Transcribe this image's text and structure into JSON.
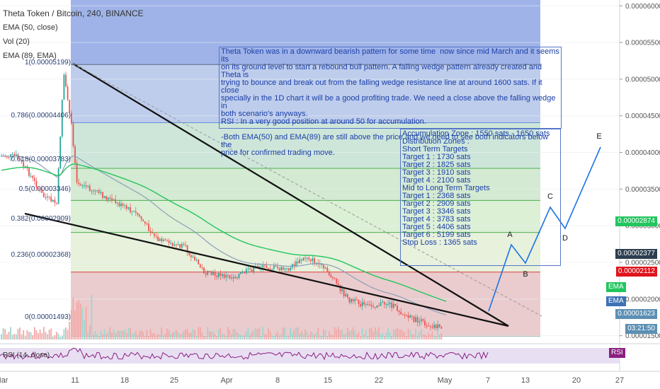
{
  "header": {
    "symbol": "Theta Token / Bitcoin, 240, BINANCE",
    "ema50": "EMA (50, close)",
    "vol": "Vol (20)",
    "ema89": "EMA (89, EMA)",
    "rsi": "RSI (14, close)"
  },
  "note_main": [
    "Theta Token was in a downward bearish pattern for some time  now since mid March and it seems its",
    "on its ground level to start a rebound bull pattern. A falling wedge pattern already created and Theta is",
    "trying to bounce and break out from the falling wedge resistance line at around 1600 sats. If it close",
    "specially in the 1D chart it will be a good profiting trade. We need a close above the falling wedge in",
    "both scenario's anyways.",
    "RSI : In a very good position at around 50 for accumulation.",
    "",
    "-Both EMA(50) and EMA(89) are still above the price and we need to see both indicators below the",
    "price for confirmed trading move."
  ],
  "note_targets": [
    "Accumulation Zone : 1550 sats - 1650 sats",
    "Distribution Zones :",
    "Short Term Targets",
    "Target 1 : 1730 sats",
    "Target 2 : 1825 sats",
    "Target 3 : 1910 sats",
    "Target 4 : 2100 sats",
    "Mid to Long Term Targets",
    "Target 1 : 2368 sats",
    "Target 2 : 2909 sats",
    "Target 3 : 3346 sats",
    "Target 4 : 3783 sats",
    "Target 5 : 4406 sats",
    "Target 6 : 5199 sats",
    "Stop Loss : 1365 sats"
  ],
  "price_labels": {
    "ema89_value": "0.00002874",
    "ema50_value": "0.00002377",
    "red_value": "0.00002112",
    "last_value": "0.00001623",
    "countdown": "03:21:50",
    "ema_tag1": "EMA",
    "ema_tag2": "EMA",
    "rsi_tag": "RSI"
  },
  "colors": {
    "blue_zone": "#9fb3e8",
    "ema89": "#22c55e",
    "ema50": "#8ba0b8",
    "red_label": "#e0141c",
    "last_label": "#5b8fb5",
    "ema89_label": "#22c55e",
    "ema50_label": "#2c3e50",
    "candle_up": "#26a69a",
    "candle_down": "#ef5350",
    "note_text": "#1b3fa8"
  },
  "chart_data": {
    "type": "candlestick",
    "title": "Theta Token / Bitcoin, 240, BINANCE",
    "price_axis_ticks": [
      "0.00006000",
      "0.00005500",
      "0.00005000",
      "0.00004500",
      "0.00004000",
      "0.00003500",
      "0.00003000",
      "0.00002500",
      "0.00002000",
      "0.00001500"
    ],
    "x_tick_labels": [
      "Mar",
      "11",
      "18",
      "25",
      "Apr",
      "8",
      "15",
      "22",
      "May",
      "7",
      "13",
      "20",
      "27"
    ],
    "ylim": [
      1.4e-05,
      6.08e-05
    ],
    "fibonacci": [
      {
        "label": "1(0.00005199)",
        "value": 5.199e-05
      },
      {
        "label": "0.786(0.00004406)",
        "value": 4.406e-05
      },
      {
        "label": "0.618(0.00003783)",
        "value": 3.783e-05
      },
      {
        "label": "0.5(0.00003346)",
        "value": 3.346e-05
      },
      {
        "label": "0.382(0.00002909)",
        "value": 2.909e-05
      },
      {
        "label": "0.236(0.00002368)",
        "value": 2.368e-05
      },
      {
        "label": "0(0.00001493)",
        "value": 1.493e-05
      }
    ],
    "wave_labels": [
      "A",
      "B",
      "C",
      "D",
      "E"
    ],
    "price_path": [
      {
        "x": "Mar 4",
        "y": 3.95e-05
      },
      {
        "x": "Mar 6",
        "y": 3.7e-05
      },
      {
        "x": "Mar 8",
        "y": 3.4e-05
      },
      {
        "x": "Mar 10",
        "y": 3.3e-05
      },
      {
        "x": "Mar 11",
        "y": 5.1e-05
      },
      {
        "x": "Mar 12",
        "y": 4.5e-05
      },
      {
        "x": "Mar 13",
        "y": 3.6e-05
      },
      {
        "x": "Mar 15",
        "y": 3.5e-05
      },
      {
        "x": "Mar 18",
        "y": 3.35e-05
      },
      {
        "x": "Mar 22",
        "y": 3.15e-05
      },
      {
        "x": "Mar 25",
        "y": 2.8e-05
      },
      {
        "x": "Mar 29",
        "y": 2.7e-05
      },
      {
        "x": "Apr 1",
        "y": 2.35e-05
      },
      {
        "x": "Apr 5",
        "y": 2.3e-05
      },
      {
        "x": "Apr 9",
        "y": 2.45e-05
      },
      {
        "x": "Apr 13",
        "y": 2.4e-05
      },
      {
        "x": "Apr 16",
        "y": 2.58e-05
      },
      {
        "x": "Apr 19",
        "y": 2.38e-05
      },
      {
        "x": "Apr 22",
        "y": 2e-05
      },
      {
        "x": "Apr 25",
        "y": 1.9e-05
      },
      {
        "x": "Apr 28",
        "y": 1.95e-05
      },
      {
        "x": "May 1",
        "y": 1.75e-05
      },
      {
        "x": "May 4",
        "y": 1.65e-05
      },
      {
        "x": "May 6",
        "y": 1.62e-05
      }
    ]
  }
}
